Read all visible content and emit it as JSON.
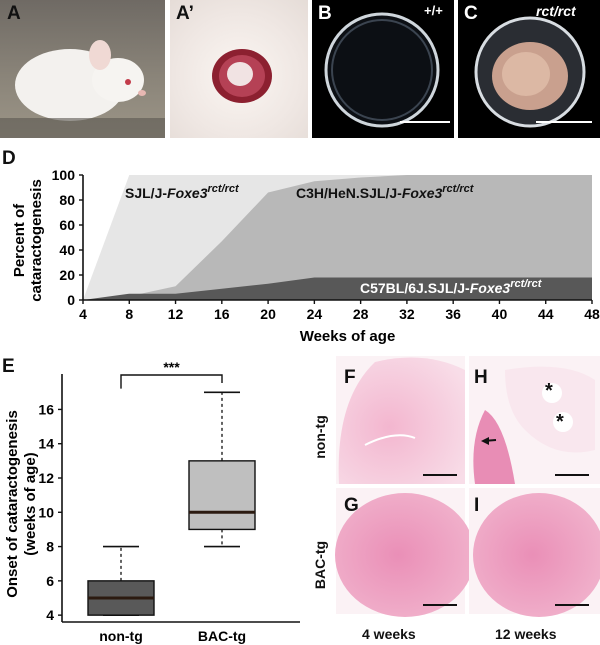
{
  "panels": {
    "A": "A",
    "A_prime": "A’",
    "B": "B",
    "B_genotype": "+/+",
    "C": "C",
    "C_genotype": "rct/rct",
    "D": "D",
    "E": "E",
    "F": "F",
    "G": "G",
    "H": "H",
    "I": "I"
  },
  "histology": {
    "row_labels": [
      "non-tg",
      "BAC-tg"
    ],
    "col_labels": [
      "4 weeks",
      "12 weeks"
    ],
    "asterisk": "*"
  },
  "colors": {
    "sjl": "#e6e6e6",
    "c3h": "#b8b8b8",
    "c57": "#585858",
    "box_nontg": "#595959",
    "box_bactg": "#bfbfbf",
    "median": "#2b1a10",
    "hist_pink": "#ef9fc2"
  },
  "chart_data": [
    {
      "type": "area",
      "panel": "D",
      "x": [
        4,
        8,
        12,
        16,
        20,
        24,
        28,
        32,
        36,
        40,
        44,
        48
      ],
      "xticks": [
        4,
        8,
        12,
        16,
        20,
        24,
        28,
        32,
        36,
        40,
        44,
        48
      ],
      "yticks": [
        0,
        20,
        40,
        60,
        80,
        100
      ],
      "xlabel": "Weeks of age",
      "ylabel_lines": [
        "Percent of",
        "cataractogenesis"
      ],
      "xlim": [
        4,
        48
      ],
      "ylim": [
        0,
        100
      ],
      "series": [
        {
          "strain": "SJL/J-",
          "gene": "Foxe3",
          "allele": "rct/rct",
          "values": [
            0,
            100,
            100,
            100,
            100,
            100,
            100,
            100,
            100,
            100,
            100,
            100
          ]
        },
        {
          "strain": "C3H/HeN.SJL/J-",
          "gene": "Foxe3",
          "allele": "rct/rct",
          "values": [
            0,
            3,
            11,
            47,
            86,
            95,
            98,
            100,
            100,
            100,
            100,
            100
          ]
        },
        {
          "strain": "C57BL/6J.SJL/J-",
          "gene": "Foxe3",
          "allele": "rct/rct",
          "values": [
            0,
            5,
            5,
            9,
            13,
            18,
            18,
            18,
            18,
            18,
            18,
            18
          ]
        }
      ]
    },
    {
      "type": "box",
      "panel": "E",
      "categories": [
        "non-tg",
        "BAC-tg"
      ],
      "ylabel_lines": [
        "Onset of cataractogenesis",
        "(weeks of age)"
      ],
      "yticks": [
        4,
        6,
        8,
        10,
        12,
        14,
        16
      ],
      "ylim": [
        3.6,
        17.6
      ],
      "significance": "***",
      "boxes": [
        {
          "whisker_low": 4,
          "q1": 4,
          "median": 5,
          "q3": 6,
          "whisker_high": 8
        },
        {
          "whisker_low": 8,
          "q1": 9,
          "median": 10,
          "q3": 13,
          "whisker_high": 17
        }
      ]
    }
  ]
}
